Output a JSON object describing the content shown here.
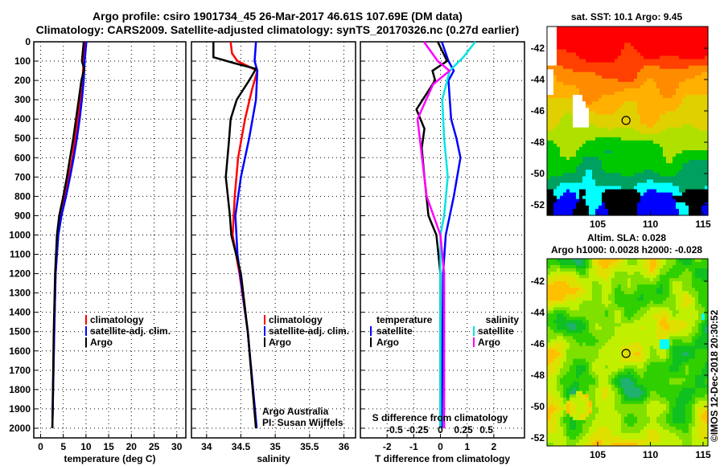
{
  "title1": "Argo profile: csiro 1901734_45 26-Mar-2017 46.61S 107.69E (DM data)",
  "title2": "Climatology: CARS2009. Satellite-adjusted climatology: synTS_20170326.nc (0.27d earlier)",
  "colors": {
    "clim": "#ff0000",
    "sat": "#0000ff",
    "argo": "#000000",
    "ssal": "#00e5e5",
    "asal": "#ff00ff"
  },
  "chart_data": [
    {
      "type": "line",
      "name": "temperature",
      "xlabel": "temperature (deg C)",
      "xlim": [
        -1.5,
        32
      ],
      "ylim": [
        0,
        2050
      ],
      "yinvert": true,
      "xticks": [
        0,
        5,
        10,
        15,
        20,
        25,
        30
      ],
      "yticks": [
        0,
        100,
        200,
        300,
        400,
        500,
        600,
        700,
        800,
        900,
        1000,
        1100,
        1200,
        1300,
        1400,
        1500,
        1600,
        1700,
        1800,
        1900,
        2000
      ],
      "legend": [
        "climatology",
        "satellite-adj. clim.",
        "Argo"
      ],
      "series": [
        {
          "name": "climatology",
          "color": "clim",
          "points": [
            [
              0,
              9.7
            ],
            [
              100,
              9.5
            ],
            [
              200,
              9.2
            ],
            [
              300,
              8.7
            ],
            [
              400,
              8.2
            ],
            [
              500,
              7.6
            ],
            [
              600,
              7.0
            ],
            [
              700,
              6.2
            ],
            [
              800,
              5.3
            ],
            [
              900,
              4.4
            ],
            [
              1000,
              3.8
            ],
            [
              1200,
              3.3
            ],
            [
              1500,
              3.0
            ],
            [
              2000,
              2.6
            ]
          ]
        },
        {
          "name": "satellite-adj. clim.",
          "color": "sat",
          "points": [
            [
              0,
              10.1
            ],
            [
              100,
              9.7
            ],
            [
              200,
              9.5
            ],
            [
              300,
              9.1
            ],
            [
              400,
              8.6
            ],
            [
              500,
              8.0
            ],
            [
              600,
              7.3
            ],
            [
              700,
              6.5
            ],
            [
              800,
              5.6
            ],
            [
              900,
              4.6
            ],
            [
              1000,
              3.9
            ],
            [
              1200,
              3.3
            ],
            [
              1500,
              3.0
            ],
            [
              2000,
              2.6
            ]
          ]
        },
        {
          "name": "Argo",
          "color": "argo",
          "points": [
            [
              0,
              9.5
            ],
            [
              100,
              9.1
            ],
            [
              140,
              9.6
            ],
            [
              200,
              9.0
            ],
            [
              300,
              8.4
            ],
            [
              400,
              7.8
            ],
            [
              500,
              7.2
            ],
            [
              600,
              6.5
            ],
            [
              700,
              5.8
            ],
            [
              800,
              5.0
            ],
            [
              900,
              4.1
            ],
            [
              1000,
              3.6
            ],
            [
              1200,
              3.2
            ],
            [
              1500,
              2.9
            ],
            [
              2000,
              2.6
            ]
          ]
        }
      ]
    },
    {
      "type": "line",
      "name": "salinity",
      "xlabel": "salinity",
      "xlim": [
        33.78,
        36.17
      ],
      "ylim": [
        0,
        2050
      ],
      "yinvert": true,
      "xticks": [
        34,
        34.5,
        35,
        35.5,
        36
      ],
      "legend": [
        "climatology",
        "satellite-adj. clim.",
        "Argo"
      ],
      "annotation": [
        "Argo Australia",
        "PI: Susan Wijffels"
      ],
      "series": [
        {
          "name": "climatology",
          "color": "clim",
          "points": [
            [
              0,
              34.35
            ],
            [
              60,
              34.37
            ],
            [
              100,
              34.45
            ],
            [
              150,
              34.74
            ],
            [
              250,
              34.66
            ],
            [
              400,
              34.56
            ],
            [
              600,
              34.46
            ],
            [
              800,
              34.41
            ],
            [
              1000,
              34.38
            ],
            [
              1200,
              34.48
            ],
            [
              1500,
              34.6
            ],
            [
              2000,
              34.72
            ]
          ]
        },
        {
          "name": "satellite-adj. clim.",
          "color": "sat",
          "points": [
            [
              0,
              34.72
            ],
            [
              100,
              34.7
            ],
            [
              150,
              34.74
            ],
            [
              300,
              34.72
            ],
            [
              500,
              34.62
            ],
            [
              700,
              34.5
            ],
            [
              900,
              34.42
            ],
            [
              1100,
              34.45
            ],
            [
              1500,
              34.6
            ],
            [
              2000,
              34.73
            ]
          ]
        },
        {
          "name": "Argo",
          "color": "argo",
          "points": [
            [
              0,
              34.1
            ],
            [
              80,
              34.1
            ],
            [
              110,
              34.4
            ],
            [
              140,
              34.72
            ],
            [
              200,
              34.62
            ],
            [
              300,
              34.44
            ],
            [
              400,
              34.35
            ],
            [
              500,
              34.33
            ],
            [
              700,
              34.28
            ],
            [
              900,
              34.34
            ],
            [
              1000,
              34.36
            ],
            [
              1200,
              34.5
            ],
            [
              1500,
              34.6
            ],
            [
              2000,
              34.72
            ]
          ]
        }
      ]
    },
    {
      "type": "line",
      "name": "difference",
      "xlabel": "T difference from climatology",
      "x2label": "S difference from climatology",
      "xlim": [
        -3,
        3.15
      ],
      "ylim": [
        0,
        2050
      ],
      "yinvert": true,
      "xticks": [
        -2,
        -1,
        0,
        1,
        2
      ],
      "x2ticks": [
        "-0.5",
        "-0.25",
        "0",
        "0.25",
        "0.5"
      ],
      "x2values": [
        -0.5,
        -0.25,
        0,
        0.25,
        0.5
      ],
      "s_scale": 3.44,
      "legend_t": {
        "title": "temperature",
        "items": [
          "satellite",
          "Argo"
        ]
      },
      "legend_s": {
        "title": "salinity",
        "items": [
          "satellite",
          "Argo"
        ]
      },
      "series": [
        {
          "name": "T satellite",
          "color": "sat",
          "unit": "T",
          "points": [
            [
              0,
              0.05
            ],
            [
              100,
              0.3
            ],
            [
              150,
              0.5
            ],
            [
              200,
              0.3
            ],
            [
              300,
              0.35
            ],
            [
              400,
              0.4
            ],
            [
              500,
              0.6
            ],
            [
              600,
              0.75
            ],
            [
              800,
              0.5
            ],
            [
              1000,
              0.2
            ],
            [
              1200,
              0.1
            ],
            [
              2000,
              0.05
            ]
          ]
        },
        {
          "name": "T Argo",
          "color": "argo",
          "unit": "T",
          "points": [
            [
              0,
              -0.1
            ],
            [
              100,
              0.25
            ],
            [
              150,
              -0.3
            ],
            [
              200,
              -0.2
            ],
            [
              350,
              -0.9
            ],
            [
              450,
              -0.6
            ],
            [
              550,
              -0.7
            ],
            [
              700,
              -0.6
            ],
            [
              900,
              -0.45
            ],
            [
              1000,
              -0.15
            ],
            [
              1200,
              0.0
            ],
            [
              2000,
              0.0
            ]
          ]
        },
        {
          "name": "S satellite",
          "color": "ssal",
          "unit": "S",
          "points": [
            [
              0,
              0.38
            ],
            [
              80,
              0.25
            ],
            [
              150,
              0.1
            ],
            [
              300,
              0.02
            ],
            [
              500,
              0.04
            ],
            [
              700,
              0.08
            ],
            [
              900,
              0.04
            ],
            [
              1000,
              0.0
            ],
            [
              2000,
              0.0
            ]
          ]
        },
        {
          "name": "S Argo",
          "color": "asal",
          "unit": "S",
          "points": [
            [
              0,
              -0.18
            ],
            [
              100,
              -0.03
            ],
            [
              150,
              0.1
            ],
            [
              220,
              -0.08
            ],
            [
              400,
              -0.25
            ],
            [
              600,
              -0.2
            ],
            [
              800,
              -0.15
            ],
            [
              1000,
              0.0
            ],
            [
              1200,
              0.04
            ],
            [
              2000,
              0.04
            ]
          ]
        }
      ]
    }
  ],
  "map1": {
    "title": "sat. SST: 10.1 Argo: 9.45",
    "xticks": [
      "105",
      "110",
      "115"
    ],
    "yticks": [
      "-42",
      "-44",
      "-46",
      "-48",
      "-50",
      "-52"
    ]
  },
  "map2": {
    "title1": "Altim. SLA: 0.028",
    "title2": "Argo h1000: 0.0028 h2000: -0.028",
    "xticks": [
      "105",
      "110",
      "115"
    ],
    "yticks": [
      "-42",
      "-44",
      "-46",
      "-48",
      "-50",
      "-52"
    ]
  },
  "float_position": {
    "lon": 107.69,
    "lat": -46.61
  },
  "credit": "©IMOS 12-Dec-2018 20:30:52"
}
